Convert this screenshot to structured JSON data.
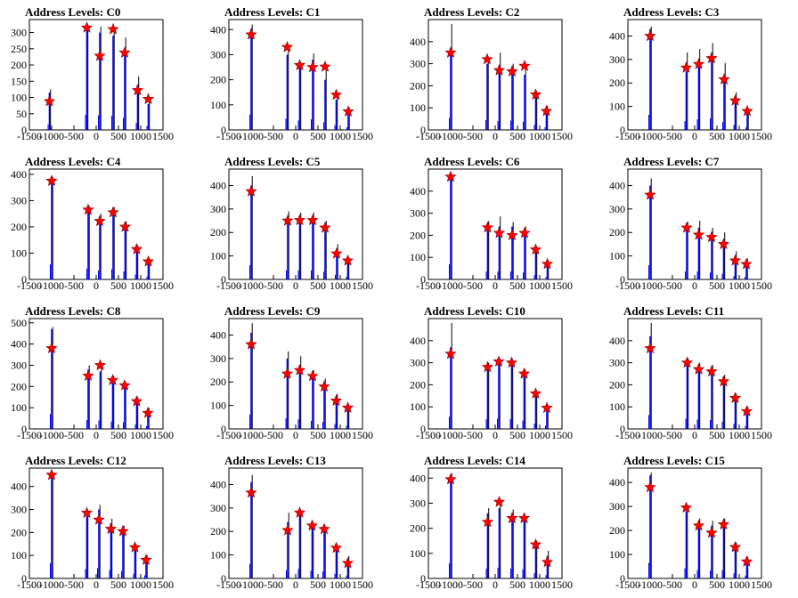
{
  "chart_data": [
    {
      "type": "bar",
      "title": "Address Levels: C0",
      "xlim": [
        -1500,
        1500
      ],
      "ylim": [
        0,
        340
      ],
      "yticks": [
        0,
        50,
        100,
        150,
        200,
        250,
        300
      ],
      "xticks": [
        -1500,
        -1000,
        -500,
        0,
        500,
        1000,
        1500
      ],
      "peaks": [
        {
          "x": -1050,
          "blue": 115,
          "black": 125,
          "star": 88
        },
        {
          "x": -210,
          "blue": 310,
          "black": 320,
          "star": 315
        },
        {
          "x": 80,
          "blue": 300,
          "black": 318,
          "star": 228
        },
        {
          "x": 380,
          "blue": 290,
          "black": 315,
          "star": 310
        },
        {
          "x": 640,
          "blue": 250,
          "black": 285,
          "star": 238
        },
        {
          "x": 930,
          "blue": 140,
          "black": 165,
          "star": 122
        },
        {
          "x": 1170,
          "blue": 80,
          "black": 95,
          "star": 95
        }
      ]
    },
    {
      "type": "bar",
      "title": "Address Levels: C1",
      "xlim": [
        -1500,
        1500
      ],
      "ylim": [
        0,
        440
      ],
      "yticks": [
        0,
        100,
        200,
        300,
        400
      ],
      "xticks": [
        -1500,
        -1000,
        -500,
        0,
        500,
        1000,
        1500
      ],
      "peaks": [
        {
          "x": -1000,
          "blue": 405,
          "black": 420,
          "star": 380
        },
        {
          "x": -190,
          "blue": 300,
          "black": 320,
          "star": 330
        },
        {
          "x": 90,
          "blue": 250,
          "black": 270,
          "star": 258
        },
        {
          "x": 380,
          "blue": 280,
          "black": 305,
          "star": 250
        },
        {
          "x": 660,
          "blue": 200,
          "black": 255,
          "star": 252
        },
        {
          "x": 910,
          "blue": 120,
          "black": 140,
          "star": 140
        },
        {
          "x": 1180,
          "blue": 70,
          "black": 90,
          "star": 73
        }
      ]
    },
    {
      "type": "bar",
      "title": "Address Levels: C2",
      "xlim": [
        -1500,
        1500
      ],
      "ylim": [
        0,
        500
      ],
      "yticks": [
        0,
        100,
        200,
        300,
        400
      ],
      "xticks": [
        -1500,
        -1000,
        -500,
        0,
        500,
        1000,
        1500
      ],
      "peaks": [
        {
          "x": -1000,
          "blue": 360,
          "black": 480,
          "star": 350
        },
        {
          "x": -180,
          "blue": 300,
          "black": 330,
          "star": 320
        },
        {
          "x": 90,
          "blue": 270,
          "black": 350,
          "star": 270
        },
        {
          "x": 380,
          "blue": 280,
          "black": 300,
          "star": 265
        },
        {
          "x": 660,
          "blue": 250,
          "black": 280,
          "star": 290
        },
        {
          "x": 910,
          "blue": 150,
          "black": 170,
          "star": 160
        },
        {
          "x": 1150,
          "blue": 80,
          "black": 110,
          "star": 85
        }
      ]
    },
    {
      "type": "bar",
      "title": "Address Levels: C3",
      "xlim": [
        -1500,
        1500
      ],
      "ylim": [
        0,
        470
      ],
      "yticks": [
        0,
        100,
        200,
        300,
        400
      ],
      "xticks": [
        -1500,
        -1000,
        -500,
        0,
        500,
        1000,
        1500
      ],
      "peaks": [
        {
          "x": -1000,
          "blue": 430,
          "black": 440,
          "star": 400
        },
        {
          "x": -190,
          "blue": 250,
          "black": 330,
          "star": 265
        },
        {
          "x": 90,
          "blue": 300,
          "black": 345,
          "star": 280
        },
        {
          "x": 380,
          "blue": 330,
          "black": 370,
          "star": 305
        },
        {
          "x": 660,
          "blue": 220,
          "black": 285,
          "star": 215
        },
        {
          "x": 910,
          "blue": 140,
          "black": 160,
          "star": 125
        },
        {
          "x": 1180,
          "blue": 70,
          "black": 90,
          "star": 80
        }
      ]
    },
    {
      "type": "bar",
      "title": "Address Levels: C4",
      "xlim": [
        -1500,
        1500
      ],
      "ylim": [
        0,
        420
      ],
      "yticks": [
        0,
        100,
        200,
        300,
        400
      ],
      "xticks": [
        -1500,
        -1000,
        -500,
        0,
        500,
        1000,
        1500
      ],
      "peaks": [
        {
          "x": -1000,
          "blue": 380,
          "black": 390,
          "star": 375
        },
        {
          "x": -180,
          "blue": 270,
          "black": 280,
          "star": 265
        },
        {
          "x": 80,
          "blue": 230,
          "black": 250,
          "star": 222
        },
        {
          "x": 380,
          "blue": 260,
          "black": 275,
          "star": 255
        },
        {
          "x": 650,
          "blue": 200,
          "black": 220,
          "star": 200
        },
        {
          "x": 910,
          "blue": 120,
          "black": 130,
          "star": 115
        },
        {
          "x": 1170,
          "blue": 70,
          "black": 80,
          "star": 68
        }
      ]
    },
    {
      "type": "bar",
      "title": "Address Levels: C5",
      "xlim": [
        -1500,
        1500
      ],
      "ylim": [
        0,
        470
      ],
      "yticks": [
        0,
        100,
        200,
        300,
        400
      ],
      "xticks": [
        -1500,
        -1000,
        -500,
        0,
        500,
        1000,
        1500
      ],
      "peaks": [
        {
          "x": -1000,
          "blue": 400,
          "black": 440,
          "star": 375
        },
        {
          "x": -180,
          "blue": 260,
          "black": 290,
          "star": 250
        },
        {
          "x": 90,
          "blue": 260,
          "black": 285,
          "star": 252
        },
        {
          "x": 380,
          "blue": 260,
          "black": 285,
          "star": 252
        },
        {
          "x": 660,
          "blue": 220,
          "black": 250,
          "star": 220
        },
        {
          "x": 920,
          "blue": 130,
          "black": 150,
          "star": 110
        },
        {
          "x": 1170,
          "blue": 80,
          "black": 95,
          "star": 80
        }
      ]
    },
    {
      "type": "bar",
      "title": "Address Levels: C6",
      "xlim": [
        -1500,
        1500
      ],
      "ylim": [
        0,
        500
      ],
      "yticks": [
        0,
        100,
        200,
        300,
        400
      ],
      "xticks": [
        -1500,
        -1000,
        -500,
        0,
        500,
        1000,
        1500
      ],
      "peaks": [
        {
          "x": -1000,
          "blue": 460,
          "black": 475,
          "star": 465
        },
        {
          "x": -170,
          "blue": 240,
          "black": 265,
          "star": 235
        },
        {
          "x": 90,
          "blue": 240,
          "black": 285,
          "star": 210
        },
        {
          "x": 380,
          "blue": 240,
          "black": 260,
          "star": 200
        },
        {
          "x": 660,
          "blue": 210,
          "black": 240,
          "star": 210
        },
        {
          "x": 910,
          "blue": 130,
          "black": 150,
          "star": 135
        },
        {
          "x": 1170,
          "blue": 70,
          "black": 85,
          "star": 70
        }
      ]
    },
    {
      "type": "bar",
      "title": "Address Levels: C7",
      "xlim": [
        -1500,
        1500
      ],
      "ylim": [
        0,
        470
      ],
      "yticks": [
        0,
        100,
        200,
        300,
        400
      ],
      "xticks": [
        -1500,
        -1000,
        -500,
        0,
        500,
        1000,
        1500
      ],
      "peaks": [
        {
          "x": -1000,
          "blue": 400,
          "black": 430,
          "star": 360
        },
        {
          "x": -180,
          "blue": 225,
          "black": 245,
          "star": 220
        },
        {
          "x": 90,
          "blue": 220,
          "black": 250,
          "star": 190
        },
        {
          "x": 380,
          "blue": 200,
          "black": 220,
          "star": 180
        },
        {
          "x": 650,
          "blue": 160,
          "black": 200,
          "star": 150
        },
        {
          "x": 910,
          "blue": 100,
          "black": 120,
          "star": 80
        },
        {
          "x": 1160,
          "blue": 70,
          "black": 90,
          "star": 65
        }
      ]
    },
    {
      "type": "bar",
      "title": "Address Levels: C8",
      "xlim": [
        -1500,
        1500
      ],
      "ylim": [
        0,
        520
      ],
      "yticks": [
        0,
        100,
        200,
        300,
        400,
        500
      ],
      "xticks": [
        -1500,
        -1000,
        -500,
        0,
        500,
        1000,
        1500
      ],
      "peaks": [
        {
          "x": -1000,
          "blue": 470,
          "black": 480,
          "star": 380
        },
        {
          "x": -180,
          "blue": 280,
          "black": 300,
          "star": 250
        },
        {
          "x": 90,
          "blue": 270,
          "black": 300,
          "star": 300
        },
        {
          "x": 370,
          "blue": 230,
          "black": 250,
          "star": 230
        },
        {
          "x": 640,
          "blue": 210,
          "black": 220,
          "star": 205
        },
        {
          "x": 910,
          "blue": 140,
          "black": 150,
          "star": 130
        },
        {
          "x": 1160,
          "blue": 90,
          "black": 100,
          "star": 75
        }
      ]
    },
    {
      "type": "bar",
      "title": "Address Levels: C9",
      "xlim": [
        -1500,
        1500
      ],
      "ylim": [
        0,
        470
      ],
      "yticks": [
        0,
        100,
        200,
        300,
        400
      ],
      "xticks": [
        -1500,
        -1000,
        -500,
        0,
        500,
        1000,
        1500
      ],
      "peaks": [
        {
          "x": -1000,
          "blue": 410,
          "black": 450,
          "star": 360
        },
        {
          "x": -190,
          "blue": 300,
          "black": 330,
          "star": 235
        },
        {
          "x": 90,
          "blue": 270,
          "black": 310,
          "star": 250
        },
        {
          "x": 380,
          "blue": 230,
          "black": 250,
          "star": 225
        },
        {
          "x": 640,
          "blue": 200,
          "black": 215,
          "star": 180
        },
        {
          "x": 910,
          "blue": 140,
          "black": 150,
          "star": 120
        },
        {
          "x": 1170,
          "blue": 90,
          "black": 100,
          "star": 90
        }
      ]
    },
    {
      "type": "bar",
      "title": "Address Levels: C10",
      "xlim": [
        -1500,
        1500
      ],
      "ylim": [
        0,
        500
      ],
      "yticks": [
        0,
        100,
        200,
        300,
        400
      ],
      "xticks": [
        -1500,
        -1000,
        -500,
        0,
        500,
        1000,
        1500
      ],
      "peaks": [
        {
          "x": -1000,
          "blue": 370,
          "black": 480,
          "star": 340
        },
        {
          "x": -170,
          "blue": 290,
          "black": 300,
          "star": 280
        },
        {
          "x": 80,
          "blue": 310,
          "black": 320,
          "star": 305
        },
        {
          "x": 370,
          "blue": 300,
          "black": 310,
          "star": 300
        },
        {
          "x": 650,
          "blue": 250,
          "black": 270,
          "star": 250
        },
        {
          "x": 910,
          "blue": 160,
          "black": 170,
          "star": 160
        },
        {
          "x": 1160,
          "blue": 100,
          "black": 110,
          "star": 95
        }
      ]
    },
    {
      "type": "bar",
      "title": "Address Levels: C11",
      "xlim": [
        -1500,
        1500
      ],
      "ylim": [
        0,
        500
      ],
      "yticks": [
        0,
        100,
        200,
        300,
        400
      ],
      "xticks": [
        -1500,
        -1000,
        -500,
        0,
        500,
        1000,
        1500
      ],
      "peaks": [
        {
          "x": -1000,
          "blue": 420,
          "black": 480,
          "star": 365
        },
        {
          "x": -170,
          "blue": 310,
          "black": 320,
          "star": 300
        },
        {
          "x": 90,
          "blue": 280,
          "black": 300,
          "star": 270
        },
        {
          "x": 380,
          "blue": 270,
          "black": 290,
          "star": 260
        },
        {
          "x": 650,
          "blue": 220,
          "black": 245,
          "star": 215
        },
        {
          "x": 910,
          "blue": 150,
          "black": 160,
          "star": 140
        },
        {
          "x": 1170,
          "blue": 90,
          "black": 100,
          "star": 80
        }
      ]
    },
    {
      "type": "bar",
      "title": "Address Levels: C12",
      "xlim": [
        -1500,
        1500
      ],
      "ylim": [
        0,
        480
      ],
      "yticks": [
        0,
        100,
        200,
        300,
        400
      ],
      "xticks": [
        -1500,
        -1000,
        -500,
        0,
        500,
        1000,
        1500
      ],
      "peaks": [
        {
          "x": -1000,
          "blue": 440,
          "black": 460,
          "star": 450
        },
        {
          "x": -210,
          "blue": 270,
          "black": 290,
          "star": 285
        },
        {
          "x": 60,
          "blue": 300,
          "black": 320,
          "star": 255
        },
        {
          "x": 330,
          "blue": 240,
          "black": 260,
          "star": 215
        },
        {
          "x": 600,
          "blue": 210,
          "black": 230,
          "star": 205
        },
        {
          "x": 870,
          "blue": 140,
          "black": 150,
          "star": 135
        },
        {
          "x": 1120,
          "blue": 90,
          "black": 100,
          "star": 80
        }
      ]
    },
    {
      "type": "bar",
      "title": "Address Levels: C13",
      "xlim": [
        -1500,
        1500
      ],
      "ylim": [
        0,
        470
      ],
      "yticks": [
        0,
        100,
        200,
        300,
        400
      ],
      "xticks": [
        -1500,
        -1000,
        -500,
        0,
        500,
        1000,
        1500
      ],
      "peaks": [
        {
          "x": -1000,
          "blue": 410,
          "black": 440,
          "star": 365
        },
        {
          "x": -180,
          "blue": 240,
          "black": 280,
          "star": 205
        },
        {
          "x": 90,
          "blue": 270,
          "black": 290,
          "star": 280
        },
        {
          "x": 370,
          "blue": 220,
          "black": 240,
          "star": 225
        },
        {
          "x": 640,
          "blue": 200,
          "black": 220,
          "star": 210
        },
        {
          "x": 910,
          "blue": 130,
          "black": 145,
          "star": 130
        },
        {
          "x": 1170,
          "blue": 80,
          "black": 95,
          "star": 65
        }
      ]
    },
    {
      "type": "bar",
      "title": "Address Levels: C14",
      "xlim": [
        -1500,
        1500
      ],
      "ylim": [
        0,
        440
      ],
      "yticks": [
        0,
        100,
        200,
        300,
        400
      ],
      "xticks": [
        -1500,
        -1000,
        -500,
        0,
        500,
        1000,
        1500
      ],
      "peaks": [
        {
          "x": -1000,
          "blue": 400,
          "black": 420,
          "star": 395
        },
        {
          "x": -170,
          "blue": 260,
          "black": 280,
          "star": 225
        },
        {
          "x": 90,
          "blue": 280,
          "black": 300,
          "star": 305
        },
        {
          "x": 380,
          "blue": 260,
          "black": 275,
          "star": 240
        },
        {
          "x": 650,
          "blue": 240,
          "black": 255,
          "star": 240
        },
        {
          "x": 910,
          "blue": 140,
          "black": 150,
          "star": 135
        },
        {
          "x": 1170,
          "blue": 90,
          "black": 110,
          "star": 65
        }
      ]
    },
    {
      "type": "bar",
      "title": "Address Levels: C15",
      "xlim": [
        -1500,
        1500
      ],
      "ylim": [
        0,
        460
      ],
      "yticks": [
        0,
        100,
        200,
        300,
        400
      ],
      "xticks": [
        -1500,
        -1000,
        -500,
        0,
        500,
        1000,
        1500
      ],
      "peaks": [
        {
          "x": -1000,
          "blue": 430,
          "black": 440,
          "star": 380
        },
        {
          "x": -190,
          "blue": 280,
          "black": 300,
          "star": 295
        },
        {
          "x": 90,
          "blue": 230,
          "black": 250,
          "star": 220
        },
        {
          "x": 380,
          "blue": 220,
          "black": 240,
          "star": 190
        },
        {
          "x": 650,
          "blue": 230,
          "black": 250,
          "star": 225
        },
        {
          "x": 910,
          "blue": 140,
          "black": 150,
          "star": 130
        },
        {
          "x": 1170,
          "blue": 80,
          "black": 90,
          "star": 70
        }
      ]
    }
  ],
  "colors": {
    "blue_bar": "#0000ff",
    "black_bar": "#000000",
    "star_fill": "#ff0000",
    "star_stroke": "#8b0000",
    "axis": "#000000"
  }
}
